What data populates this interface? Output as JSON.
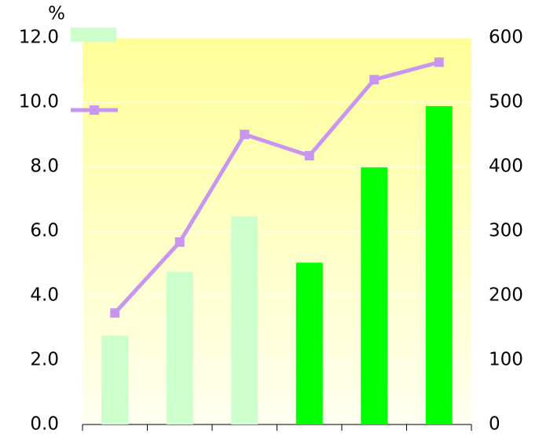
{
  "chart_data": {
    "type": "bar",
    "ylabel": "%",
    "categories": [
      null,
      null,
      null,
      null,
      null,
      null
    ],
    "series": [
      {
        "type": "bar",
        "axis": "y2",
        "colors": [
          "#ccffcc",
          "#ccffcc",
          "#ccffcc",
          "#00ff00",
          "#00ff00",
          "#00ff00"
        ],
        "color": "#ccffcc",
        "values": [
          138,
          237,
          323,
          251,
          399,
          494
        ]
      },
      {
        "type": "line",
        "axis": "y",
        "color": "#c896f0",
        "values": [
          3.46,
          5.66,
          9.0,
          8.34,
          10.7,
          11.24
        ]
      }
    ],
    "ylim": [
      0,
      12
    ],
    "yticks": [
      {
        "value": 0,
        "label": "0.0"
      },
      {
        "value": 2,
        "label": "2.0"
      },
      {
        "value": 4,
        "label": "4.0"
      },
      {
        "value": 6,
        "label": "6.0"
      },
      {
        "value": 8,
        "label": "8.0"
      },
      {
        "value": 10,
        "label": "10.0"
      },
      {
        "value": 12,
        "label": "12.0"
      }
    ],
    "y2lim": [
      0,
      600
    ],
    "y2ticks": [
      0,
      100,
      200,
      300,
      400,
      500,
      600
    ],
    "grid": true,
    "legend": "upper left"
  }
}
